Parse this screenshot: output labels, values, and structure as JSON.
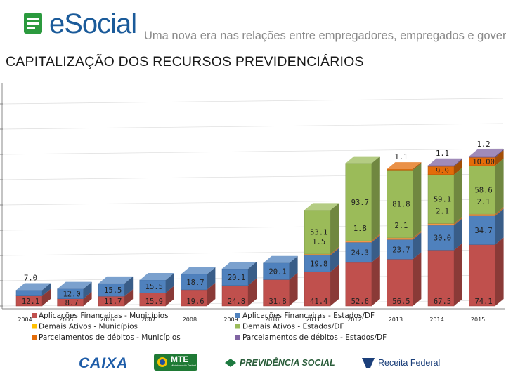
{
  "header": {
    "brand": "eSocial",
    "tagline": "Uma nova era nas relações entre empregadores, empregados e governo"
  },
  "page": {
    "title": "CAPITALIZAÇÃO DOS RECURSOS PREVIDENCIÁRIOS"
  },
  "chart_data": {
    "type": "bar",
    "stacked": true,
    "three_d": true,
    "title": "CAPITALIZAÇÃO DOS RECURSOS PREVIDENCIÁRIOS",
    "categories": [
      "2004",
      "2005",
      "2006",
      "2007",
      "2008",
      "2009",
      "2010",
      "2011",
      "2012",
      "2013",
      "2014",
      "2015"
    ],
    "ylim": [
      0,
      280
    ],
    "series": [
      {
        "name": "Aplicações Financeiras - Municípios",
        "color": "#c0504d",
        "values": [
          12.1,
          8.7,
          11.7,
          15.9,
          19.6,
          24.8,
          31.8,
          41.4,
          52.6,
          56.5,
          67.5,
          74.1
        ],
        "labels": [
          "12.1",
          "8.7",
          "11.7",
          "15.9",
          "19.6",
          "24.8",
          "31.8",
          "41.4",
          "52.6",
          "56.5",
          "67.5",
          "74.1"
        ]
      },
      {
        "name": "Demais Ativos - Municípios",
        "color": "#4f81bd",
        "values": [
          7.0,
          12.0,
          15.5,
          15.5,
          18.7,
          20.1,
          20.1,
          19.8,
          24.3,
          23.7,
          30.0,
          34.7
        ],
        "labels": [
          "7.0",
          "12.0",
          "15.5",
          "15.5",
          "18.7",
          "20.1",
          "20.1",
          "19.8",
          "24.3",
          "23.7",
          "30.0",
          "34.7"
        ]
      },
      {
        "name": "Parcelamentos de débitos - Municípios",
        "color": "#f79646",
        "values": [
          0,
          0,
          0,
          0,
          0,
          0,
          0,
          1.5,
          1.8,
          2.1,
          2.1,
          2.1
        ],
        "labels": [
          "",
          "",
          "",
          "",
          "",
          "",
          "",
          "1.5",
          "1.8",
          "2.1",
          "2.1",
          "2.1"
        ]
      },
      {
        "name": "Aplicações Financeiras - Estados/DF",
        "color": "#9bbb59",
        "values": [
          0,
          0,
          0,
          0,
          0,
          0,
          0,
          53.1,
          93.7,
          81.8,
          59.1,
          58.6
        ],
        "labels": [
          "",
          "",
          "",
          "",
          "",
          "",
          "",
          "53.1",
          "93.7",
          "81.8",
          "59.1",
          "58.6"
        ]
      },
      {
        "name": "Demais Ativos - Estados/DF",
        "color": "#e36c09",
        "values": [
          0,
          0,
          0,
          0,
          0,
          0,
          0,
          0,
          0,
          1.1,
          9.9,
          10.0
        ],
        "labels": [
          "",
          "",
          "",
          "",
          "",
          "",
          "",
          "",
          "",
          "1.1",
          "9.9",
          "10.00"
        ]
      },
      {
        "name": "Parcelamentos de débitos - Estados/DF",
        "color": "#8064a2",
        "values": [
          0,
          0,
          0,
          0,
          0,
          0,
          0,
          0,
          0,
          0,
          1.1,
          1.2
        ],
        "labels": [
          "",
          "",
          "",
          "",
          "",
          "",
          "",
          "",
          "",
          "",
          "1.1",
          "1.2"
        ]
      }
    ],
    "legend": {
      "position": "bottom",
      "entries": [
        {
          "name": "Aplicações Financeiras - Municípios",
          "color": "#c0504d"
        },
        {
          "name": "Demais Ativos - Municípios",
          "color": "#ffc000"
        },
        {
          "name": "Parcelamentos de débitos - Municípios",
          "color": "#e36c09"
        },
        {
          "name": "Aplicações Financeiras - Estados/DF",
          "color": "#4f81bd"
        },
        {
          "name": "Demais Ativos - Estados/DF",
          "color": "#9bbb59"
        },
        {
          "name": "Parcelamentos de débitos - Estados/DF",
          "color": "#8064a2"
        }
      ]
    }
  },
  "footer": {
    "logos": [
      "CAIXA",
      "MTE",
      "PREVIDÊNCIA SOCIAL",
      "Receita Federal"
    ],
    "mte_subtitle": "Ministério do Trabalho e Emprego"
  }
}
